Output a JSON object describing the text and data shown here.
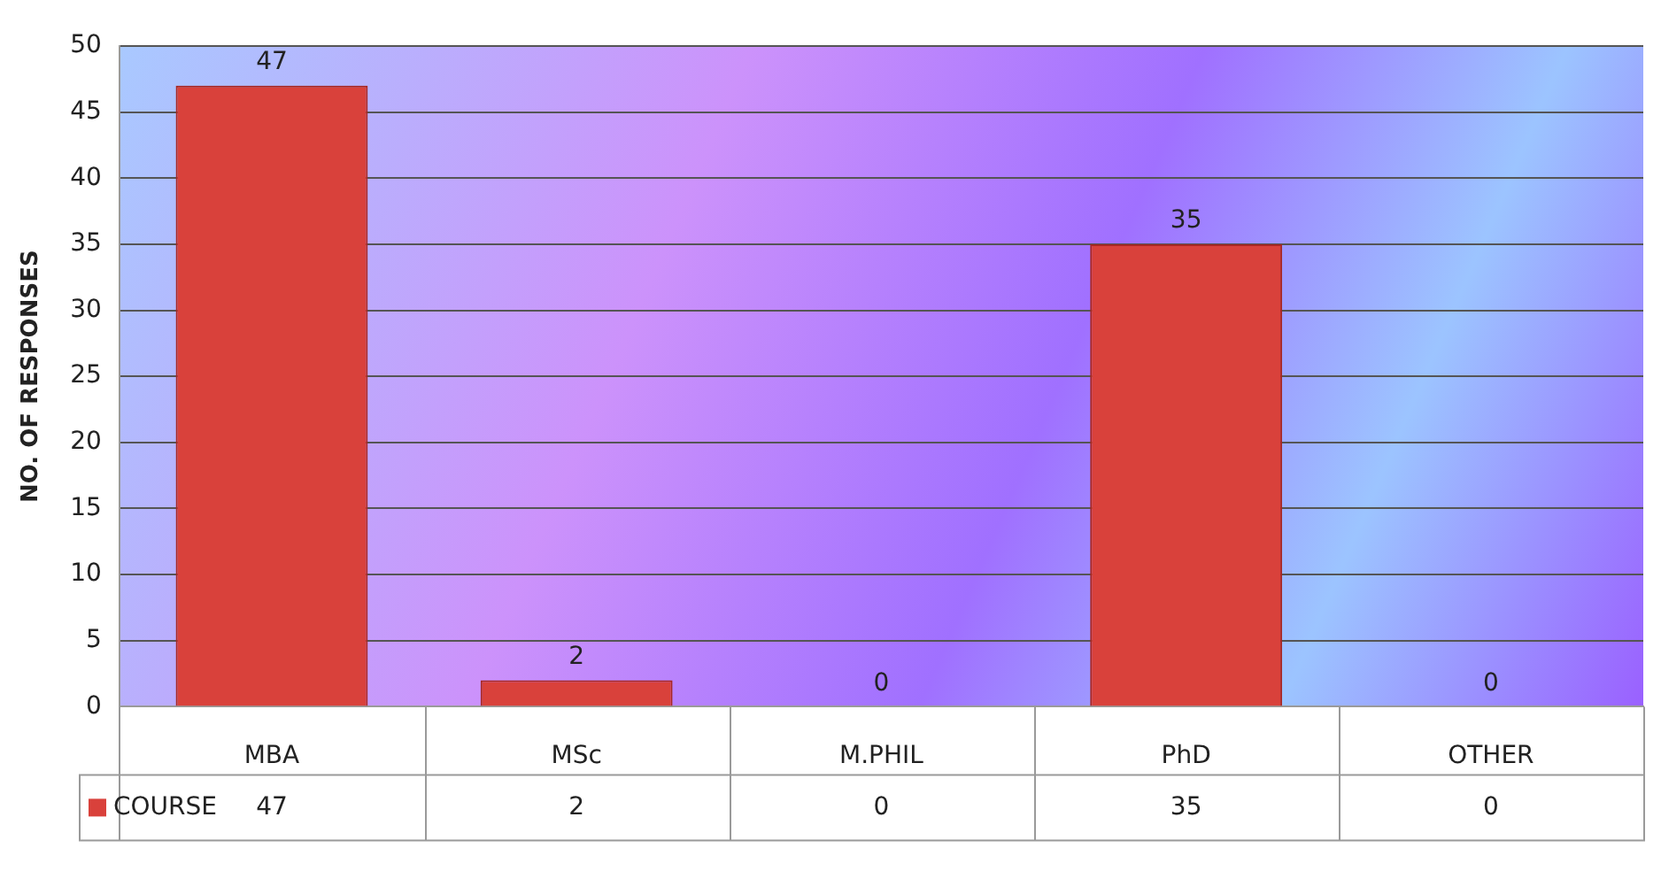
{
  "chart_data": {
    "type": "bar",
    "ylabel": "NO. OF RESPONSES",
    "categories": [
      "MBA",
      "MSc",
      "M.PHIL",
      "PhD",
      "OTHER"
    ],
    "series": [
      {
        "name": "COURSE",
        "color": "#d9413b",
        "values": [
          47,
          2,
          0,
          35,
          0
        ],
        "value_labels": [
          "47",
          "2",
          "0",
          "35",
          "0"
        ]
      }
    ],
    "ylim": [
      0,
      50
    ],
    "yticks": [
      0,
      5,
      10,
      15,
      20,
      25,
      30,
      35,
      40,
      45,
      50
    ],
    "annotations": [
      "47",
      "2",
      "0",
      "35",
      "0"
    ],
    "grid": "y",
    "legend": "bottom",
    "data_labels": true
  }
}
